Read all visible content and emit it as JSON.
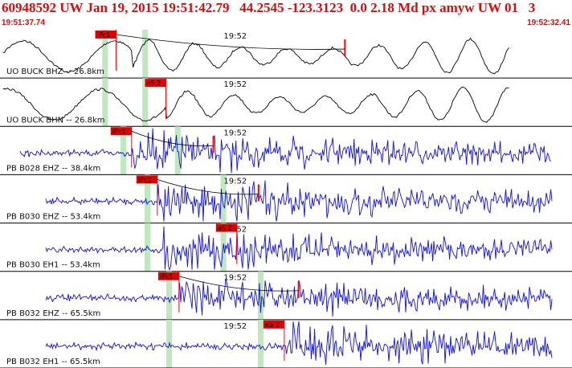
{
  "header": {
    "title": "60948592 UW Jan 19, 2015 19:51:42.79   44.2545 -123.3123  0.0 2.18 Md px amyw UW 01   3",
    "start_time": "19:51:37.74",
    "end_time": "19:52:32.41"
  },
  "colors": {
    "header_text": "#d01010",
    "trace_broadband": "#000000",
    "trace_shortperiod": "#1010e0",
    "pick_box": "#e00000",
    "pick_line": "#ff0000",
    "window_band": "#bfe8bf",
    "divider": "#000000"
  },
  "panels": [
    {
      "label": "UO BUCK BHZ -- 26.8km",
      "time_mark": "19:52",
      "picks": [
        {
          "label": "iPc1",
          "at": 0.2,
          "pos": 0.203
        }
      ],
      "bands": [
        0.183,
        0.253
      ],
      "style": "broadband",
      "arrival": 0.23,
      "extra_pick": 0.603
    },
    {
      "label": "UO BUCK BHN -- 26.8km",
      "time_mark": "19:52",
      "picks": [
        {
          "label": "eS 2",
          "pos": 0.29
        }
      ],
      "bands": [
        0.183,
        0.253
      ],
      "style": "broadband",
      "arrival": 0.29
    },
    {
      "label": "PB B028 EHZ -- 38.4km",
      "time_mark": "19:52",
      "picks": [
        {
          "label": "iPc1",
          "pos": 0.23
        }
      ],
      "bands": [
        0.215,
        0.31
      ],
      "style": "shortperiod",
      "arrival": 0.23,
      "extra_pick": 0.373
    },
    {
      "label": "PB B030 EHZ -- 53.4km",
      "time_mark": "19:52",
      "picks": [
        {
          "label": "iPc1",
          "pos": 0.275
        }
      ],
      "bands": [
        0.257,
        0.39
      ],
      "style": "shortperiod",
      "arrival": 0.275,
      "extra_pick": 0.452
    },
    {
      "label": "PB B030 EH1 -- 53.4km",
      "time_mark": "19:52",
      "picks": [
        {
          "label": "eS 2",
          "pos": 0.414
        }
      ],
      "bands": [
        0.257,
        0.39
      ],
      "style": "shortperiod",
      "arrival": 0.285
    },
    {
      "label": "PB B032 EHZ -- 65.5km",
      "time_mark": "19:52",
      "picks": [
        {
          "label": "iPc1",
          "pos": 0.313
        }
      ],
      "bands": [
        0.295,
        0.455
      ],
      "style": "shortperiod",
      "arrival": 0.313,
      "extra_pick": 0.522
    },
    {
      "label": "PB B032 EH1 -- 65.5km",
      "time_mark": "19:52",
      "picks": [
        {
          "label": "eS 2",
          "pos": 0.497
        }
      ],
      "bands": [
        0.295,
        0.455
      ],
      "style": "shortperiod",
      "arrival": 0.497
    }
  ]
}
